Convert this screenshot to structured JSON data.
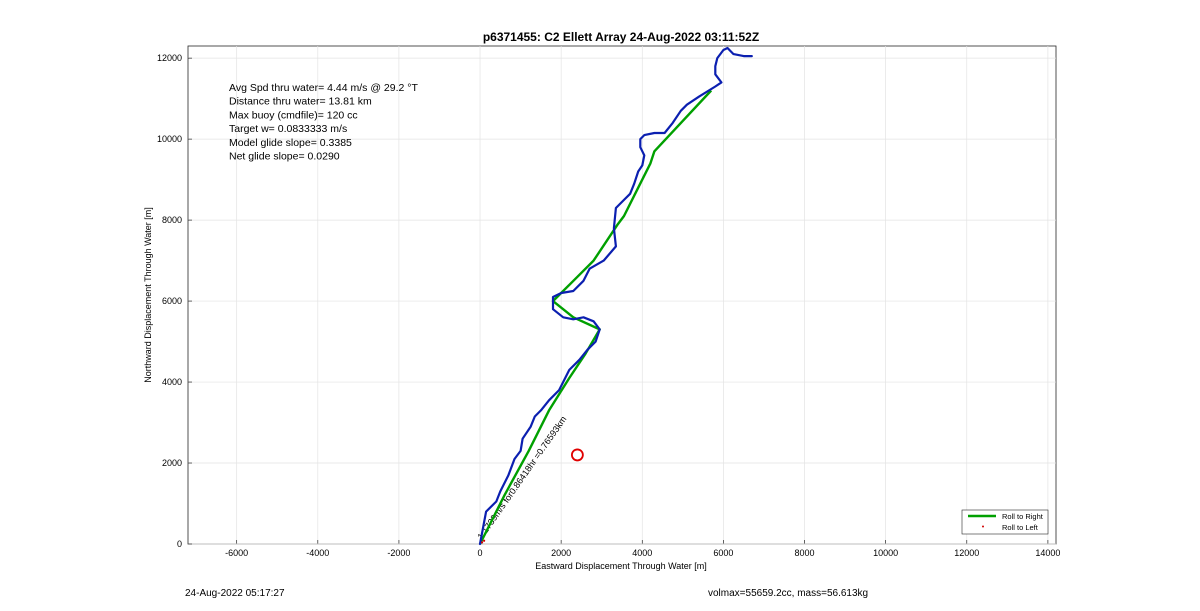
{
  "chart_data": {
    "type": "line",
    "title": "p6371455: C2 Ellett Array 24-Aug-2022 03:11:52Z",
    "xlabel": "Eastward Displacement Through Water [m]",
    "ylabel": "Northward Displacement Through Water [m]",
    "xlim": [
      -7200,
      14200
    ],
    "ylim": [
      0,
      12300
    ],
    "xticks": [
      -6000,
      -4000,
      -2000,
      0,
      2000,
      4000,
      6000,
      8000,
      10000,
      12000,
      14000
    ],
    "yticks": [
      0,
      2000,
      4000,
      6000,
      8000,
      10000,
      12000
    ],
    "grid": true,
    "legend_position": "bottom-right",
    "stats_text": [
      "Avg Spd thru water=  4.44 m/s @  29.2 °T",
      "Distance thru water= 13.81 km",
      "Max buoy (cmdfile)= 120 cc",
      "Target w= 0.0833333 m/s",
      "Model glide slope= 0.3385",
      "Net glide slope= 0.0290"
    ],
    "series": [
      {
        "name": "Roll to Right",
        "color": "#00a000",
        "style": "thick-line",
        "x": [
          0,
          600,
          1200,
          1700,
          2200,
          2600,
          2950,
          2300,
          1800,
          2400,
          2800,
          3400,
          3550,
          4200,
          4300,
          5700
        ],
        "y": [
          0,
          1200,
          2300,
          3300,
          4100,
          4700,
          5300,
          5600,
          6000,
          6600,
          7000,
          7900,
          8100,
          9400,
          9700,
          11200
        ]
      },
      {
        "name": "Roll to Left",
        "color": "#d00000",
        "style": "dots",
        "x": [
          50,
          100
        ],
        "y": [
          40,
          80
        ]
      },
      {
        "name": "",
        "color": "#0b1fb0",
        "style": "line",
        "x": [
          0,
          150,
          400,
          500,
          700,
          850,
          1000,
          1050,
          1250,
          1350,
          1500,
          1700,
          1950,
          2050,
          2200,
          2450,
          2650,
          2850,
          2950,
          2800,
          2550,
          2300,
          2050,
          1800,
          1800,
          2000,
          2300,
          2550,
          2700,
          3050,
          3350,
          3300,
          3350,
          3550,
          3700,
          3800,
          3900,
          4000,
          4050,
          3950,
          3950,
          4050,
          4300,
          4550,
          4750,
          4950,
          5100,
          5400,
          5800,
          5950,
          5800,
          5800,
          5850,
          6000,
          6100,
          6250,
          6500,
          6700
        ],
        "y": [
          0,
          800,
          1050,
          1300,
          1700,
          2100,
          2300,
          2600,
          2900,
          3150,
          3300,
          3550,
          3800,
          4000,
          4300,
          4550,
          4800,
          5000,
          5300,
          5500,
          5600,
          5550,
          5600,
          5800,
          6100,
          6200,
          6250,
          6500,
          6800,
          7000,
          7350,
          7800,
          8300,
          8500,
          8650,
          8900,
          9200,
          9350,
          9600,
          9800,
          10000,
          10100,
          10150,
          10150,
          10400,
          10700,
          10850,
          11050,
          11300,
          11400,
          11600,
          11800,
          12000,
          12200,
          12250,
          12100,
          12050,
          12050
        ]
      }
    ],
    "annotation": {
      "text": "1.1739m/s for0.86418hr =0.76593km",
      "anchor": [
        0,
        0
      ],
      "angle_deg": -55
    },
    "marker": {
      "type": "circle",
      "color": "#e00000",
      "x": 2400,
      "y": 2200
    }
  },
  "footer": {
    "left": "24-Aug-2022 05:17:27",
    "right": "volmax=55659.2cc, mass=56.613kg"
  }
}
